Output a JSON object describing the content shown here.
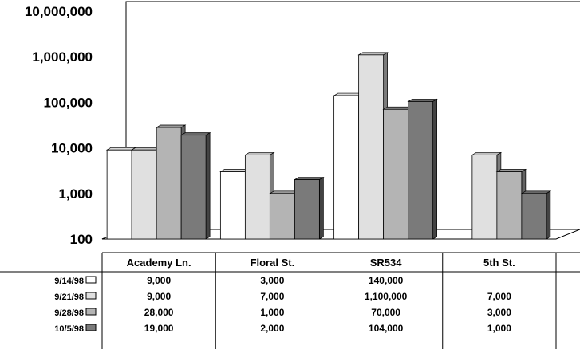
{
  "chart_data": {
    "type": "bar",
    "title": "",
    "y_scale": "log",
    "ylim": [
      100,
      10000000
    ],
    "y_ticks": [
      "100",
      "1,000",
      "10,000",
      "100,000",
      "1,000,000",
      "10,000,000"
    ],
    "categories": [
      "Academy Ln.",
      "Floral St.",
      "SR534",
      "5th St."
    ],
    "series": [
      {
        "name": "9/14/98",
        "color": "#ffffff",
        "values": [
          9000,
          3000,
          140000,
          null
        ],
        "labels": [
          "9,000",
          "3,000",
          "140,000",
          ""
        ]
      },
      {
        "name": "9/21/98",
        "color": "#e0e0e0",
        "values": [
          9000,
          7000,
          1100000,
          7000
        ],
        "labels": [
          "9,000",
          "7,000",
          "1,100,000",
          "7,000"
        ]
      },
      {
        "name": "9/28/98",
        "color": "#b4b4b4",
        "values": [
          28000,
          1000,
          70000,
          3000
        ],
        "labels": [
          "28,000",
          "1,000",
          "70,000",
          "3,000"
        ]
      },
      {
        "name": "10/5/98",
        "color": "#7a7a7a",
        "values": [
          19000,
          2000,
          104000,
          1000
        ],
        "labels": [
          "19,000",
          "2,000",
          "104,000",
          "1,000"
        ]
      }
    ],
    "legend": "data-table",
    "grid": false
  }
}
